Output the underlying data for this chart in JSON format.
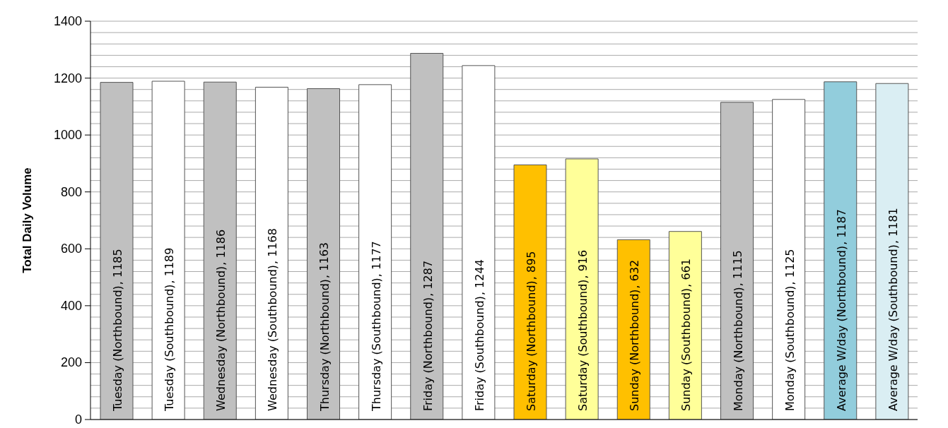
{
  "chart_data": {
    "type": "bar",
    "ylabel": "Total Daily Volume",
    "categories": [
      "Tuesday (Northbound)",
      "Tuesday (Southbound)",
      "Wednesday (Northbound)",
      "Wednesday (Southbound)",
      "Thursday (Northbound)",
      "Thursday (Southbound)",
      "Friday (Northbound)",
      "Friday (Southbound)",
      "Saturday (Northbound)",
      "Saturday (Southbound)",
      "Sunday (Northbound)",
      "Sunday (Southbound)",
      "Monday (Northbound)",
      "Monday (Southbound)",
      "Average W/day (Northbound)",
      "Average W/day (Southbound)"
    ],
    "values": [
      1185,
      1189,
      1186,
      1168,
      1163,
      1177,
      1287,
      1244,
      895,
      916,
      632,
      661,
      1115,
      1125,
      1187,
      1181
    ],
    "value_labels": [
      ", 1185",
      ", 1189",
      ", 1186",
      ", 1168",
      ", 1163",
      ", 1177",
      ", 1287",
      ", 1244",
      ", 895",
      ", 916",
      ", 632",
      ", 661",
      ", 1115",
      ", 1125",
      ", 1187",
      ", 1181"
    ],
    "colors": [
      "#c0c0c0",
      "#ffffff",
      "#c0c0c0",
      "#ffffff",
      "#c0c0c0",
      "#ffffff",
      "#c0c0c0",
      "#ffffff",
      "#ffc000",
      "#ffff99",
      "#ffc000",
      "#ffff99",
      "#c0c0c0",
      "#ffffff",
      "#92cddc",
      "#daeef3"
    ],
    "ylim": [
      0,
      1400
    ],
    "yticks": [
      0,
      {
        "value": 40,
        "label": null
      },
      {
        "value": 80,
        "label": null
      },
      {
        "value": 120,
        "label": null
      },
      {
        "value": 160,
        "label": null
      },
      200,
      {
        "value": 240,
        "label": null
      },
      {
        "value": 280,
        "label": null
      },
      {
        "value": 320,
        "label": null
      },
      {
        "value": 360,
        "label": null
      },
      400,
      {
        "value": 440,
        "label": null
      },
      {
        "value": 480,
        "label": null
      },
      {
        "value": 520,
        "label": null
      },
      {
        "value": 560,
        "label": null
      },
      600,
      {
        "value": 640,
        "label": null
      },
      {
        "value": 680,
        "label": null
      },
      {
        "value": 720,
        "label": null
      },
      {
        "value": 760,
        "label": null
      },
      800,
      {
        "value": 840,
        "label": null
      },
      {
        "value": 880,
        "label": null
      },
      {
        "value": 920,
        "label": null
      },
      {
        "value": 960,
        "label": null
      },
      1000,
      {
        "value": 1040,
        "label": null
      },
      {
        "value": 1080,
        "label": null
      },
      {
        "value": 1120,
        "label": null
      },
      {
        "value": 1160,
        "label": null
      },
      1200,
      {
        "value": 1240,
        "label": null
      },
      {
        "value": 1280,
        "label": null
      },
      {
        "value": 1320,
        "label": null
      },
      {
        "value": 1360,
        "label": null
      },
      1400
    ],
    "grid": "y",
    "legend": false
  }
}
